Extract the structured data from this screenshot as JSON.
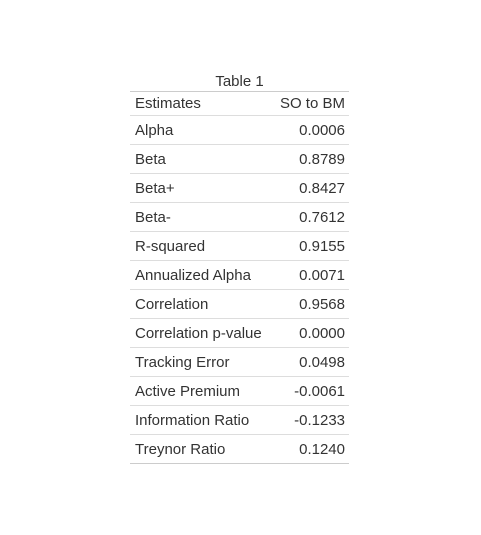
{
  "table": {
    "caption": "Table 1",
    "headers": [
      "Estimates",
      "SO to BM"
    ],
    "rows": [
      {
        "label": "Alpha",
        "value": "0.0006"
      },
      {
        "label": "Beta",
        "value": "0.8789"
      },
      {
        "label": "Beta+",
        "value": "0.8427"
      },
      {
        "label": "Beta-",
        "value": "0.7612"
      },
      {
        "label": "R-squared",
        "value": "0.9155"
      },
      {
        "label": "Annualized Alpha",
        "value": "0.0071"
      },
      {
        "label": "Correlation",
        "value": "0.9568"
      },
      {
        "label": "Correlation p-value",
        "value": "0.0000"
      },
      {
        "label": "Tracking Error",
        "value": "0.0498"
      },
      {
        "label": "Active Premium",
        "value": "-0.0061"
      },
      {
        "label": "Information Ratio",
        "value": "-0.1233"
      },
      {
        "label": "Treynor Ratio",
        "value": "0.1240"
      }
    ]
  }
}
